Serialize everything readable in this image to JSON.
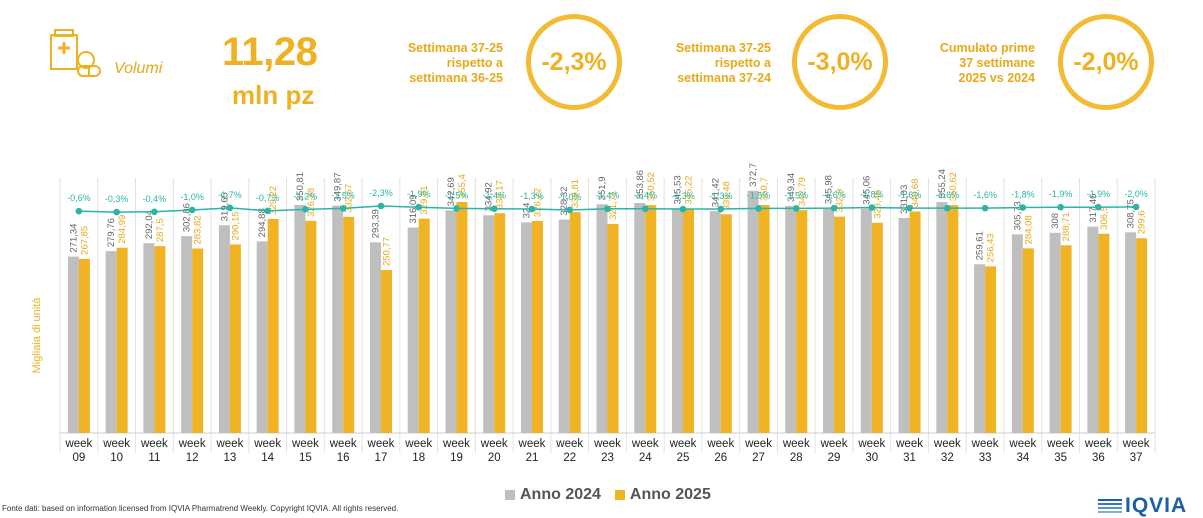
{
  "header": {
    "icon": "pharmacy-box-pills-icon",
    "volume_label": "Volumi",
    "volume_value": "11,28",
    "volume_unit": "mln pz",
    "kpis": [
      {
        "line1": "Settimana 37-25",
        "line2": "rispetto a",
        "line3": "settimana 36-25",
        "value": "-2,3%"
      },
      {
        "line1": "Settimana 37-25",
        "line2": "rispetto a",
        "line3": "settimana 37-24",
        "value": "-3,0%"
      },
      {
        "line1": "Cumulato prime",
        "line2": "37 settimane",
        "line3": "2025 vs 2024",
        "value": "-2,0%"
      }
    ]
  },
  "chart_data": {
    "type": "bar",
    "ylabel": "Migliaia di unità",
    "ylim": [
      0,
      420
    ],
    "grid": "vertical separators",
    "categories": [
      "week 09",
      "week 10",
      "week 11",
      "week 12",
      "week 13",
      "week 14",
      "week 15",
      "week 16",
      "week 17",
      "week 18",
      "week 19",
      "week 20",
      "week 21",
      "week 22",
      "week 23",
      "week 24",
      "week 25",
      "week 26",
      "week 27",
      "week 28",
      "week 29",
      "week 30",
      "week 31",
      "week 32",
      "week 33",
      "week 34",
      "week 35",
      "week 36",
      "week 37"
    ],
    "series": [
      {
        "name": "Anno 2024",
        "color": "#bfbfbf",
        "values": [
          271.34,
          279.76,
          292.04,
          302.86,
          319.65,
          294.88,
          350.81,
          349.87,
          293.39,
          316.09,
          342.69,
          334.92,
          324,
          328.32,
          351.9,
          353.86,
          345.53,
          341.42,
          372.7,
          349.34,
          345.98,
          345.06,
          331.03,
          355.24,
          259.61,
          305.73,
          308,
          317.46,
          308.75
        ],
        "labels": [
          "271,34",
          "279,76",
          "292,04",
          "302,86",
          "319,65",
          "294,88",
          "350,81",
          "349,87",
          "293,39",
          "316,09",
          "342,69",
          "334,92",
          "324",
          "328,32",
          "351,9",
          "353,86",
          "345,53",
          "341,42",
          "372,7",
          "349,34",
          "345,98",
          "345,06",
          "331,03",
          "355,24",
          "259,61",
          "305,73",
          "308",
          "317,46",
          "308,75"
        ]
      },
      {
        "name": "Anno 2025",
        "color": "#f0b323",
        "values": [
          267.85,
          284.99,
          287.5,
          283.82,
          290.15,
          329.22,
          326.38,
          332.57,
          250.77,
          329.81,
          355.4,
          338.17,
          326.22,
          339.81,
          321.71,
          350.52,
          345.22,
          336.48,
          350.7,
          342.79,
          332.9,
          323.45,
          340.68,
          350.62,
          256.43,
          284.08,
          288.71,
          306.5,
          299.6
        ],
        "labels": [
          "267,85",
          "284,99",
          "287,5",
          "283,82",
          "290,15",
          "329,22",
          "326,38",
          "332,57",
          "250,77",
          "329,81",
          "355,4",
          "338,17",
          "326,22",
          "339,81",
          "321,71",
          "350,52",
          "345,22",
          "336,48",
          "350,7",
          "342,79",
          "332,9",
          "323,45",
          "340,68",
          "350,62",
          "256,43",
          "284,08",
          "288,71",
          "306,5",
          "299,6"
        ]
      }
    ],
    "variation": {
      "color": "#2bb5a5",
      "values": [
        -0.6,
        -0.3,
        -0.4,
        -1.0,
        -1.7,
        -0.7,
        -1.2,
        -1.5,
        -2.3,
        -1.9,
        -1.5,
        -1.4,
        -1.3,
        -1.0,
        -1.4,
        -1.4,
        -1.3,
        -1.3,
        -1.5,
        -1.5,
        -1.6,
        -1.8,
        -1.6,
        -1.6,
        -1.6,
        -1.8,
        -1.9,
        -1.9,
        -2.0
      ],
      "labels": [
        "-0,6%",
        "-0,3%",
        "-0,4%",
        "-1,0%",
        "-1,7%",
        "-0,7%",
        "-1,2%",
        "-1,5%",
        "-2,3%",
        "-1,9%",
        "-1,5%",
        "-1,4%",
        "-1,3%",
        "-1,0%",
        "-1,4%",
        "-1,4%",
        "-1,3%",
        "-1,3%",
        "-1,5%",
        "-1,5%",
        "-1,6%",
        "-1,8%",
        "-1,6%",
        "-1,6%",
        "-1,6%",
        "-1,8%",
        "-1,9%",
        "-1,9%",
        "-2,0%"
      ]
    }
  },
  "legend": {
    "items": [
      "Anno 2024",
      "Anno 2025"
    ]
  },
  "footer": {
    "source": "Fonte dati: based on information licensed from IQVIA Pharmatrend Weekly. Copyright IQVIA. All rights reserved.",
    "logo_text": "IQVIA"
  }
}
